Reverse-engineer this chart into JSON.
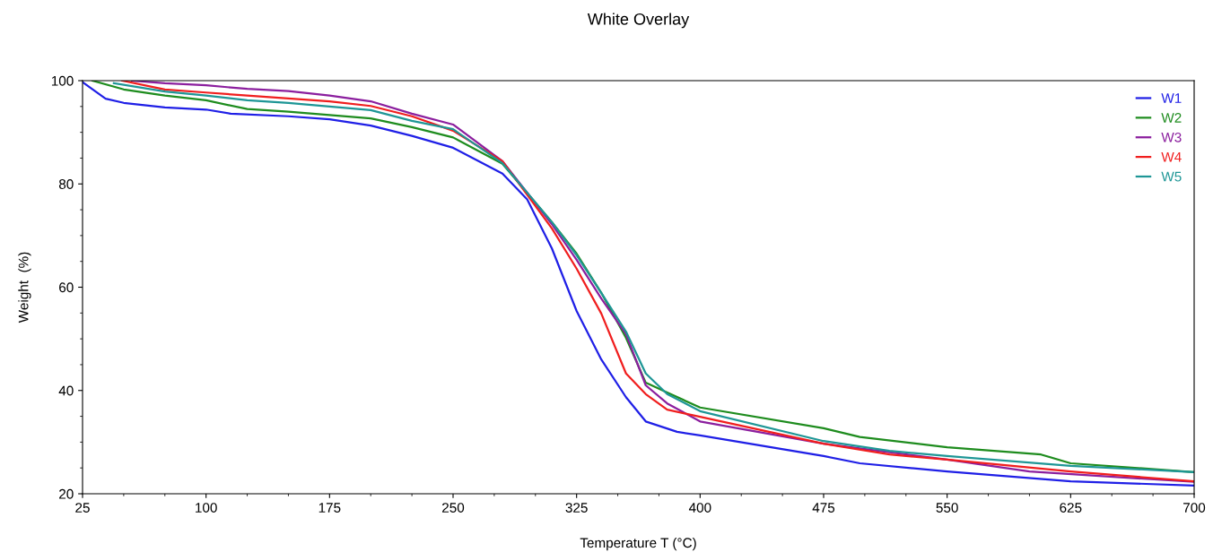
{
  "chart_data": {
    "type": "line",
    "title": "White Overlay",
    "xlabel": "Temperature T (°C)",
    "ylabel": "Weight  (%)",
    "xlim": [
      25,
      700
    ],
    "xticks": [
      25,
      100,
      175,
      250,
      325,
      400,
      475,
      550,
      625,
      700
    ],
    "ylim": [
      20,
      100
    ],
    "yticks": [
      20,
      40,
      60,
      80,
      100
    ],
    "grid": false,
    "legend": "top right",
    "marker": "none",
    "line_style": "solid",
    "series": [
      {
        "name": "W1",
        "color": "#1f1fe6",
        "x": [
          25,
          39,
          50,
          75,
          100,
          115,
          150,
          175,
          200,
          225,
          250,
          280,
          295,
          310,
          325,
          340,
          355,
          367,
          386,
          400,
          475,
          497,
          550,
          625,
          700
        ],
        "values": [
          99.7,
          96.5,
          95.7,
          94.8,
          94.4,
          93.6,
          93.1,
          92.5,
          91.3,
          89.3,
          87,
          82,
          77,
          67.5,
          55.4,
          46,
          38.7,
          34,
          32,
          31.3,
          27.3,
          25.9,
          24.3,
          22.4,
          21.6
        ]
      },
      {
        "name": "W2",
        "color": "#1e8c1e",
        "x": [
          31,
          50,
          75,
          100,
          125,
          150,
          200,
          225,
          250,
          280,
          310,
          325,
          340,
          355,
          367,
          380,
          400,
          475,
          497,
          550,
          607,
          625,
          700
        ],
        "values": [
          100,
          98.3,
          97.1,
          96.2,
          94.5,
          94,
          92.7,
          91,
          89,
          83.9,
          72.6,
          66.5,
          58.9,
          50.2,
          41.5,
          39.6,
          36.7,
          32.7,
          31,
          29,
          27.6,
          25.9,
          24.2
        ]
      },
      {
        "name": "W3",
        "color": "#8b1e9e",
        "x": [
          55,
          75,
          100,
          125,
          150,
          175,
          200,
          225,
          250,
          280,
          310,
          325,
          340,
          355,
          367,
          380,
          400,
          475,
          550,
          600,
          700
        ],
        "values": [
          100,
          99.5,
          99.1,
          98.4,
          98,
          97.1,
          96,
          93.6,
          91.5,
          84.4,
          72.2,
          65.3,
          57.8,
          50.9,
          41,
          37.5,
          34,
          29.7,
          26.6,
          24.3,
          22.3
        ]
      },
      {
        "name": "W4",
        "color": "#f01e1e",
        "x": [
          49,
          75,
          100,
          125,
          175,
          200,
          225,
          250,
          280,
          310,
          325,
          340,
          355,
          367,
          380,
          400,
          475,
          515,
          550,
          625,
          700
        ],
        "values": [
          100,
          98.3,
          97.7,
          97.1,
          96,
          95.1,
          93.1,
          90.3,
          84.4,
          71.4,
          63.6,
          54.9,
          43.3,
          39.3,
          36.3,
          34.9,
          29.7,
          27.6,
          26.6,
          24.3,
          22.4
        ]
      },
      {
        "name": "W5",
        "color": "#1e9696",
        "x": [
          44,
          75,
          100,
          125,
          150,
          200,
          225,
          250,
          280,
          310,
          325,
          340,
          355,
          367,
          380,
          400,
          475,
          515,
          550,
          625,
          700
        ],
        "values": [
          99.5,
          97.9,
          97.1,
          96.2,
          95.7,
          94.3,
          92.2,
          90.6,
          84,
          72.6,
          66.2,
          58.9,
          51.4,
          43.3,
          39.3,
          36,
          30.2,
          28.3,
          27.3,
          25.4,
          24.2
        ]
      }
    ]
  }
}
